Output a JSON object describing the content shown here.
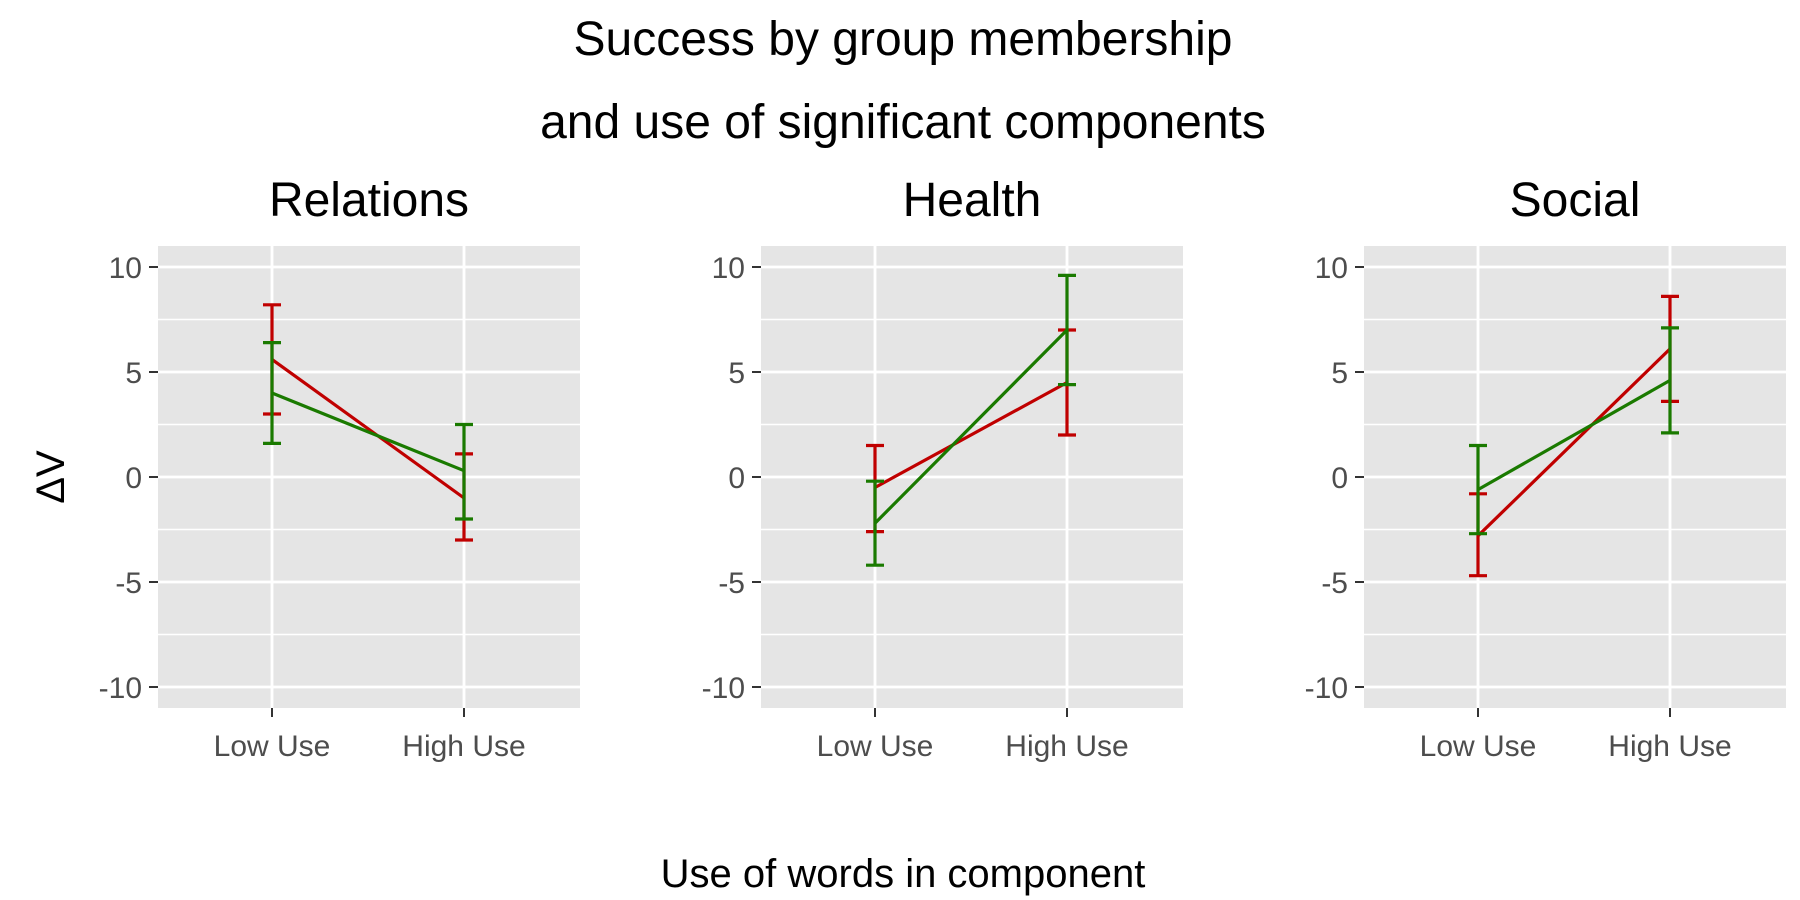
{
  "chart_data": {
    "type": "line",
    "title_lines": [
      "Success by group membership",
      "and use of significant components"
    ],
    "xlabel": "Use of words in component",
    "ylabel": "ΔV",
    "categories": [
      "Low Use",
      "High Use"
    ],
    "ylim": [
      -11,
      11
    ],
    "yticks": [
      -10,
      -5,
      0,
      5,
      10
    ],
    "grid": true,
    "legend": "none",
    "series_colors": [
      "#c00000",
      "#1a7a00"
    ],
    "panels": [
      {
        "title": "Relations",
        "series": [
          {
            "color": "#c00000",
            "values": [
              5.6,
              -1.0
            ],
            "lower": [
              3.0,
              -3.0
            ],
            "upper": [
              8.2,
              1.1
            ]
          },
          {
            "color": "#1a7a00",
            "values": [
              4.0,
              0.3
            ],
            "lower": [
              1.6,
              -2.0
            ],
            "upper": [
              6.4,
              2.5
            ]
          }
        ]
      },
      {
        "title": "Health",
        "series": [
          {
            "color": "#c00000",
            "values": [
              -0.5,
              4.5
            ],
            "lower": [
              -2.6,
              2.0
            ],
            "upper": [
              1.5,
              7.0
            ]
          },
          {
            "color": "#1a7a00",
            "values": [
              -2.2,
              7.0
            ],
            "lower": [
              -4.2,
              4.4
            ],
            "upper": [
              -0.2,
              9.6
            ]
          }
        ]
      },
      {
        "title": "Social",
        "series": [
          {
            "color": "#c00000",
            "values": [
              -2.8,
              6.1
            ],
            "lower": [
              -4.7,
              3.6
            ],
            "upper": [
              -0.8,
              8.6
            ]
          },
          {
            "color": "#1a7a00",
            "values": [
              -0.6,
              4.6
            ],
            "lower": [
              -2.7,
              2.1
            ],
            "upper": [
              1.5,
              7.1
            ]
          }
        ]
      }
    ]
  }
}
